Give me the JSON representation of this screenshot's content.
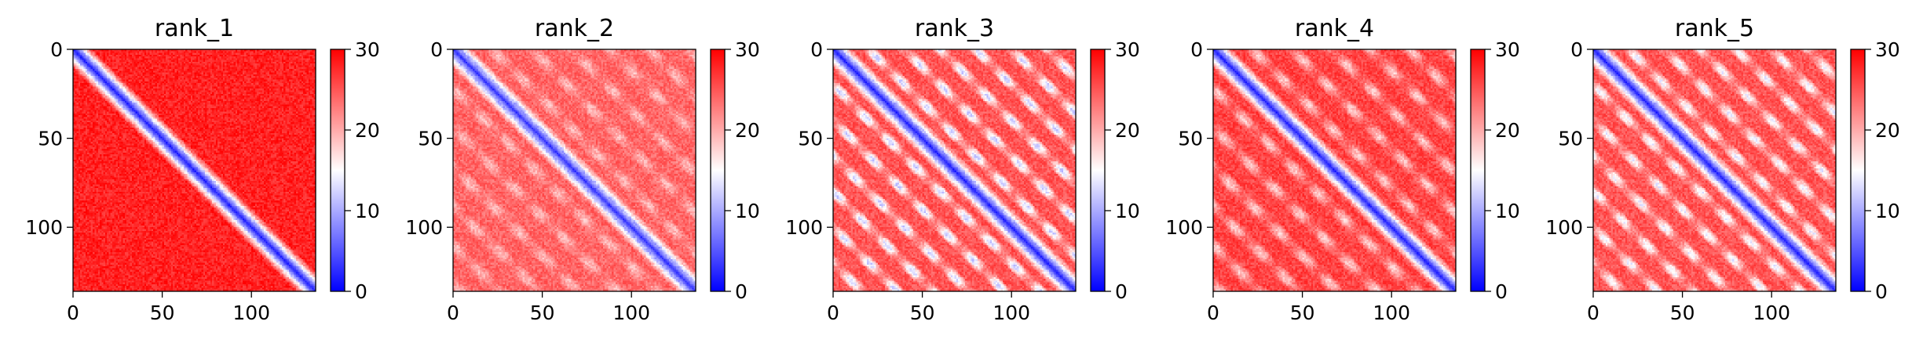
{
  "chart_data": [
    {
      "type": "heatmap",
      "title": "rank_1",
      "xlim": [
        0,
        136
      ],
      "ylim": [
        136,
        0
      ],
      "xticks": [
        0,
        50,
        100
      ],
      "yticks": [
        0,
        50,
        100
      ],
      "colorbar": {
        "range": [
          0,
          30
        ],
        "ticks": [
          0,
          10,
          20,
          30
        ],
        "colormap": "bwr"
      },
      "pattern": {
        "diagonal_value": 1,
        "band_width": 4,
        "off_diagonal_base": 28,
        "stripe_period": 0,
        "stripe_depth": 0
      }
    },
    {
      "type": "heatmap",
      "title": "rank_2",
      "xlim": [
        0,
        136
      ],
      "ylim": [
        136,
        0
      ],
      "xticks": [
        0,
        50,
        100
      ],
      "yticks": [
        0,
        50,
        100
      ],
      "colorbar": {
        "range": [
          0,
          30
        ],
        "ticks": [
          0,
          10,
          20,
          30
        ],
        "colormap": "bwr"
      },
      "pattern": {
        "diagonal_value": 2,
        "band_width": 4,
        "off_diagonal_base": 24,
        "stripe_period": 22,
        "stripe_depth": 5
      }
    },
    {
      "type": "heatmap",
      "title": "rank_3",
      "xlim": [
        0,
        136
      ],
      "ylim": [
        136,
        0
      ],
      "xticks": [
        0,
        50,
        100
      ],
      "yticks": [
        0,
        50,
        100
      ],
      "colorbar": {
        "range": [
          0,
          30
        ],
        "ticks": [
          0,
          10,
          20,
          30
        ],
        "colormap": "bwr"
      },
      "pattern": {
        "diagonal_value": 1,
        "band_width": 4,
        "off_diagonal_base": 25,
        "stripe_period": 20,
        "stripe_depth": 13
      }
    },
    {
      "type": "heatmap",
      "title": "rank_4",
      "xlim": [
        0,
        136
      ],
      "ylim": [
        136,
        0
      ],
      "xticks": [
        0,
        50,
        100
      ],
      "yticks": [
        0,
        50,
        100
      ],
      "colorbar": {
        "range": [
          0,
          30
        ],
        "ticks": [
          0,
          10,
          20,
          30
        ],
        "colormap": "bwr"
      },
      "pattern": {
        "diagonal_value": 1,
        "band_width": 4,
        "off_diagonal_base": 26,
        "stripe_period": 22,
        "stripe_depth": 8
      }
    },
    {
      "type": "heatmap",
      "title": "rank_5",
      "xlim": [
        0,
        136
      ],
      "ylim": [
        136,
        0
      ],
      "xticks": [
        0,
        50,
        100
      ],
      "yticks": [
        0,
        50,
        100
      ],
      "colorbar": {
        "range": [
          0,
          30
        ],
        "ticks": [
          0,
          10,
          20,
          30
        ],
        "colormap": "bwr"
      },
      "pattern": {
        "diagonal_value": 1,
        "band_width": 4,
        "off_diagonal_base": 25,
        "stripe_period": 20,
        "stripe_depth": 11
      }
    }
  ]
}
